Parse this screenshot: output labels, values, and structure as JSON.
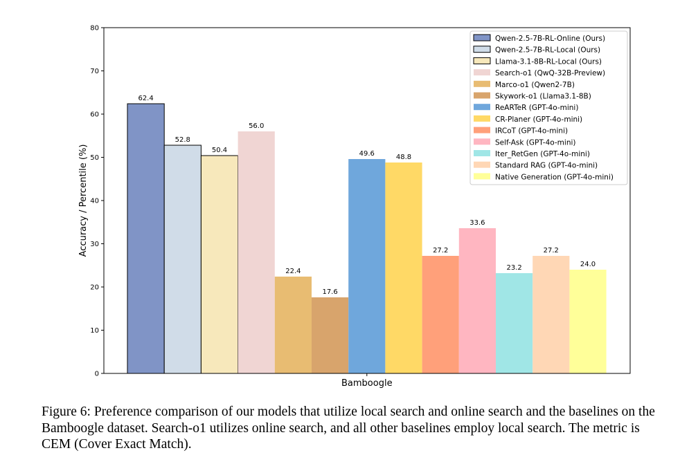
{
  "chart_data": {
    "type": "bar",
    "title": "",
    "xlabel": "",
    "ylabel": "Accuracy / Percentile (%)",
    "ylim": [
      0,
      80
    ],
    "yticks": [
      0,
      10,
      20,
      30,
      40,
      50,
      60,
      70,
      80
    ],
    "categories": [
      "Bamboogle"
    ],
    "grid": false,
    "legend_position": "top-right",
    "series": [
      {
        "name": "Qwen-2.5-7B-RL-Online (Ours)",
        "values": [
          62.4
        ],
        "color": "#8094c6",
        "edge": true
      },
      {
        "name": "Qwen-2.5-7B-RL-Local (Ours)",
        "values": [
          52.8
        ],
        "color": "#d0dce8",
        "edge": true
      },
      {
        "name": "Llama-3.1-8B-RL-Local (Ours)",
        "values": [
          50.4
        ],
        "color": "#f7e8bb",
        "edge": true
      },
      {
        "name": "Search-o1 (QwQ-32B-Preview)",
        "values": [
          56.0
        ],
        "color": "#f0d5d3",
        "edge": false
      },
      {
        "name": "Marco-o1 (Qwen2-7B)",
        "values": [
          22.4
        ],
        "color": "#e8bc72",
        "edge": false
      },
      {
        "name": "Skywork-o1 (Llama3.1-8B)",
        "values": [
          17.6
        ],
        "color": "#d8a46c",
        "edge": false
      },
      {
        "name": "ReARTeR (GPT-4o-mini)",
        "values": [
          49.6
        ],
        "color": "#6fa7dc",
        "edge": false
      },
      {
        "name": "CR-Planer (GPT-4o-mini)",
        "values": [
          48.8
        ],
        "color": "#ffd966",
        "edge": false
      },
      {
        "name": "IRCoT (GPT-4o-mini)",
        "values": [
          27.2
        ],
        "color": "#ffa07a",
        "edge": false
      },
      {
        "name": "Self-Ask (GPT-4o-mini)",
        "values": [
          33.6
        ],
        "color": "#ffb6c1",
        "edge": false
      },
      {
        "name": "Iter_RetGen (GPT-4o-mini)",
        "values": [
          23.2
        ],
        "color": "#a0e6e6",
        "edge": false
      },
      {
        "name": "Standard RAG (GPT-4o-mini)",
        "values": [
          27.2
        ],
        "color": "#ffd7b5",
        "edge": false
      },
      {
        "name": "Native Generation (GPT-4o-mini)",
        "values": [
          24.0
        ],
        "color": "#ffff99",
        "edge": false
      }
    ]
  },
  "caption": "Figure 6: Preference comparison of our models that utilize local search and online search and the baselines on the Bamboogle dataset. Search-o1 utilizes online search, and all other baselines employ local search. The metric is CEM (Cover Exact Match)."
}
